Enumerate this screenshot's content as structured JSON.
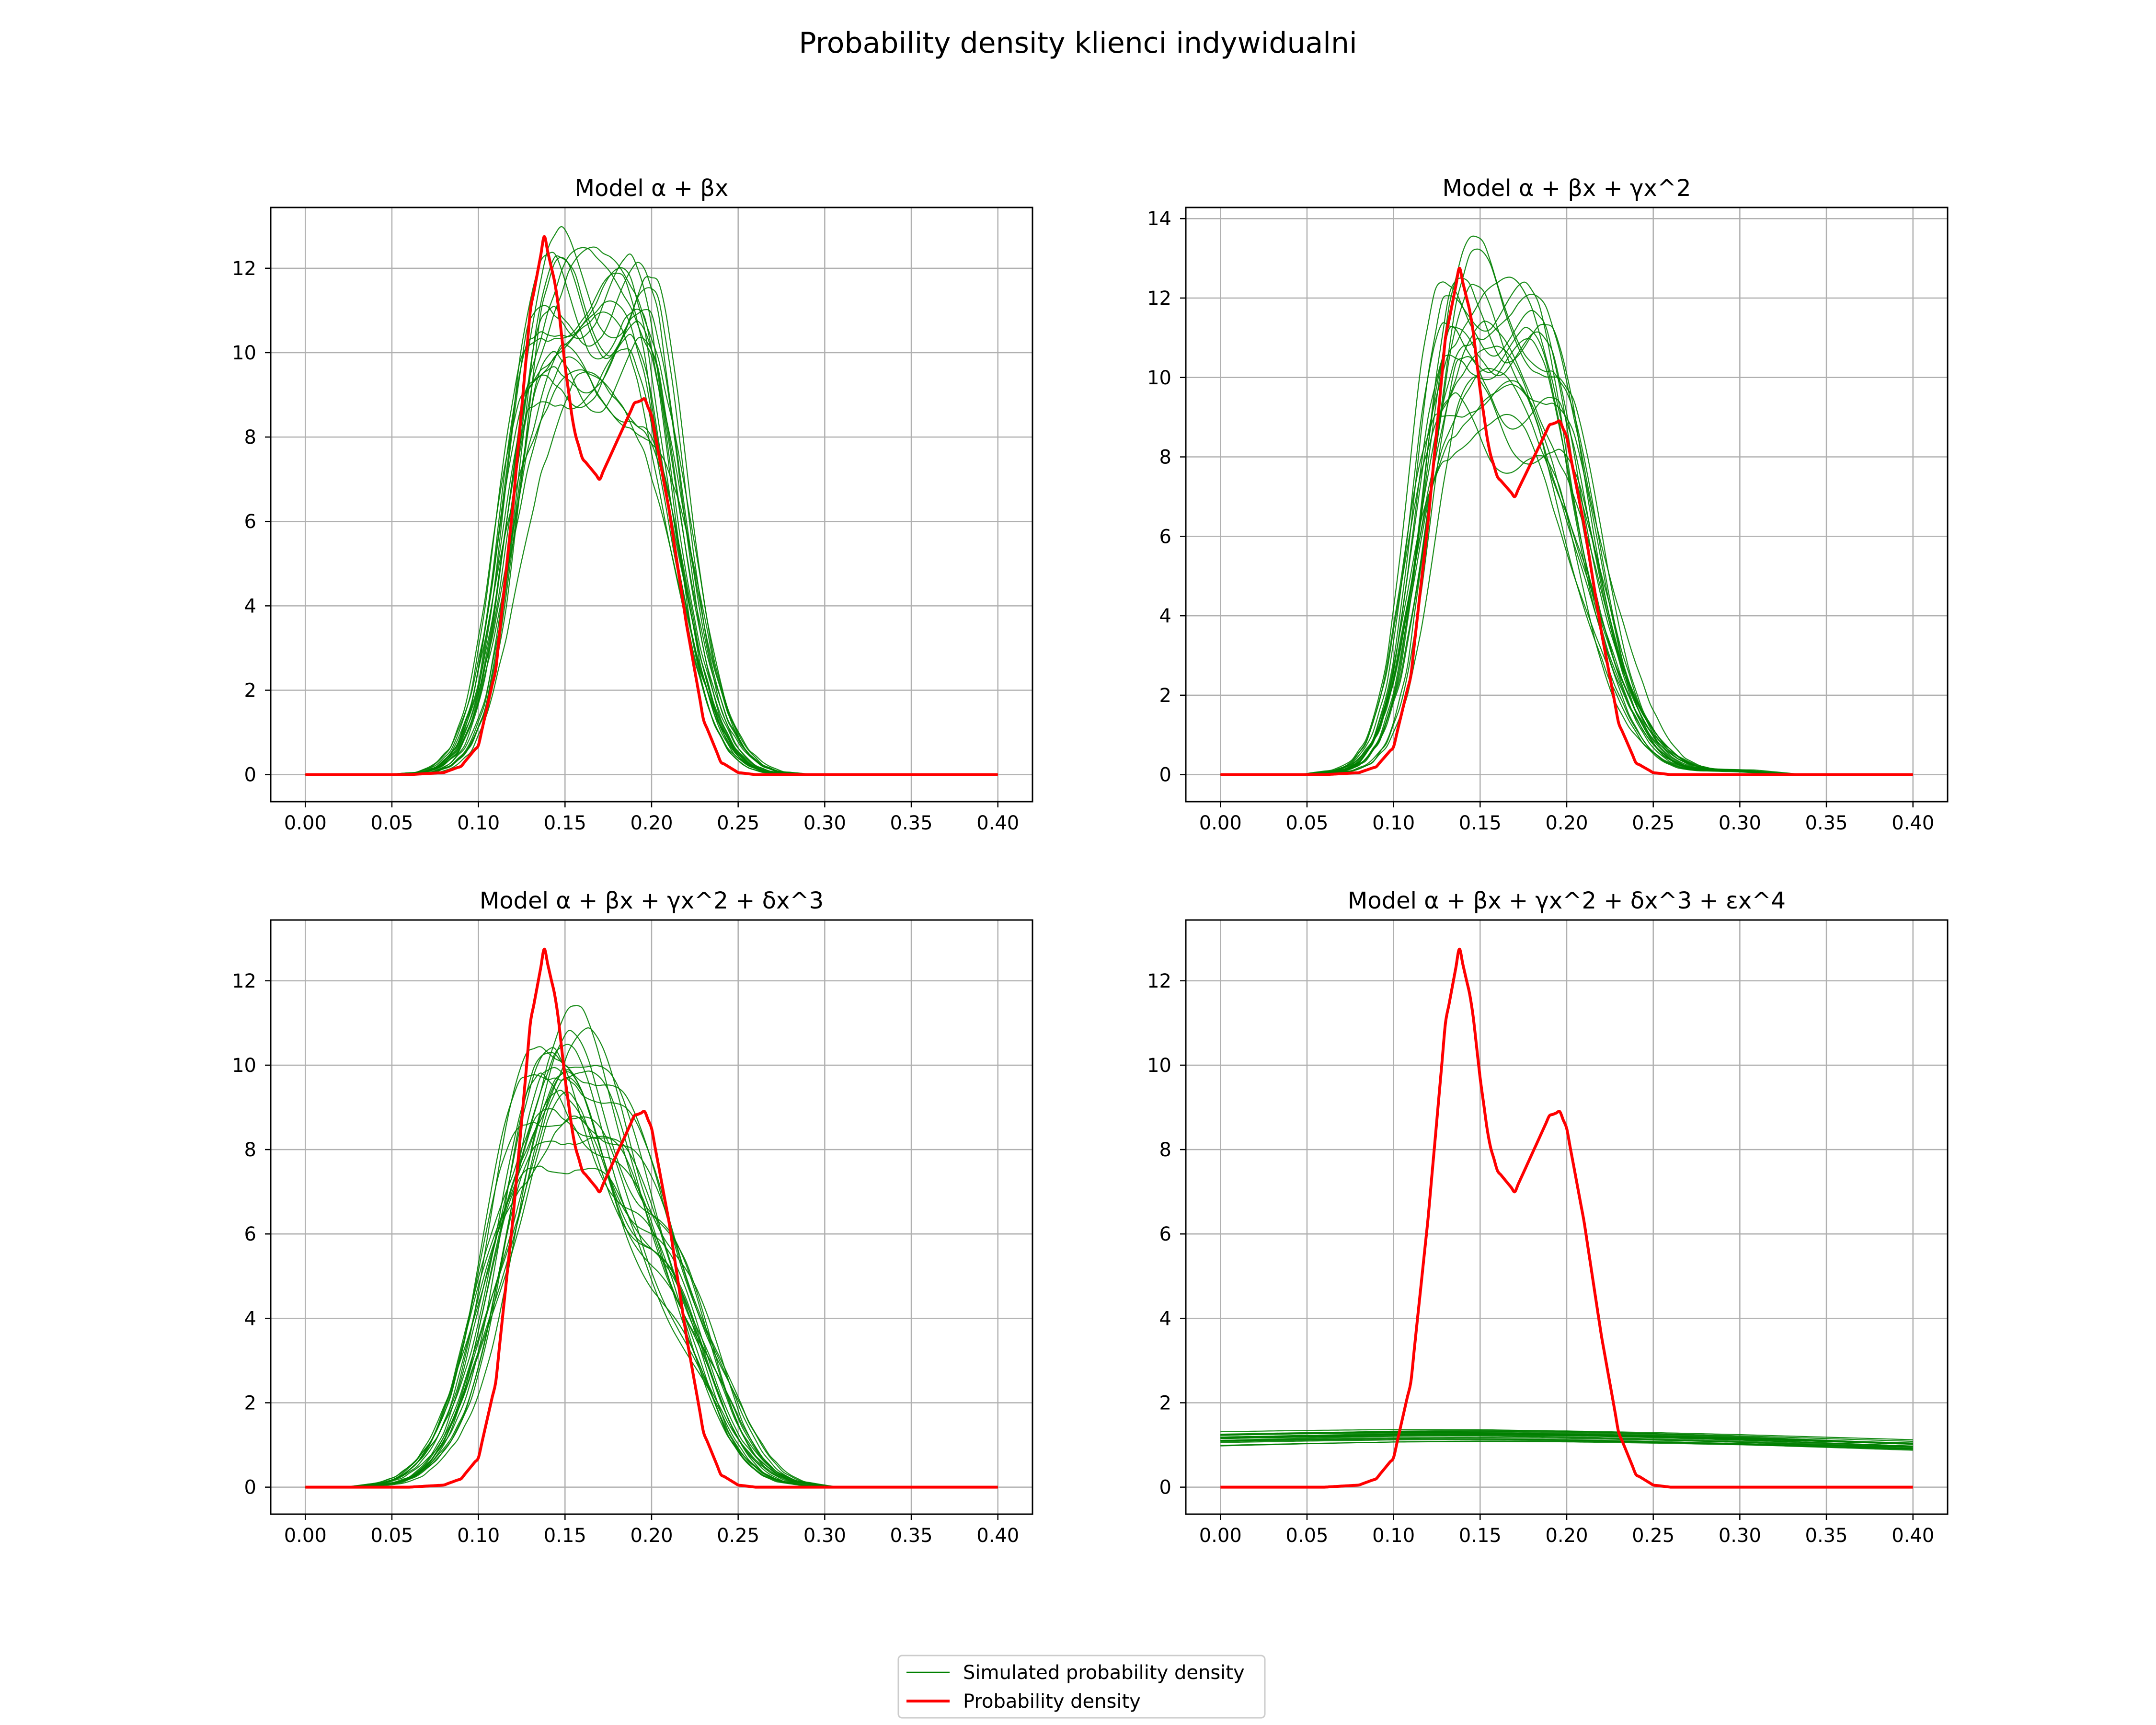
{
  "figure": {
    "title": "Probability density klienci indywidualni"
  },
  "legend": {
    "simulated_label": "Simulated probability density",
    "density_label": "Probability density",
    "colors": {
      "simulated": "#008000",
      "density": "#ff0000"
    }
  },
  "chart_data": [
    {
      "type": "line",
      "title": "Model α + βx",
      "xlabel": "",
      "ylabel": "",
      "xlim": [
        -0.02,
        0.42
      ],
      "ylim": [
        -0.64,
        13.44
      ],
      "xticks": [
        "0.00",
        "0.05",
        "0.10",
        "0.15",
        "0.20",
        "0.25",
        "0.30",
        "0.35",
        "0.40"
      ],
      "yticks": [
        "0",
        "2",
        "4",
        "6",
        "8",
        "10",
        "12"
      ],
      "grid": true,
      "series": [
        {
          "name": "Probability density",
          "color": "#ff0000",
          "x": [
            0.0,
            0.06,
            0.08,
            0.09,
            0.1,
            0.11,
            0.12,
            0.13,
            0.138,
            0.145,
            0.15,
            0.155,
            0.16,
            0.17,
            0.18,
            0.19,
            0.196,
            0.2,
            0.21,
            0.22,
            0.23,
            0.24,
            0.25,
            0.26,
            0.28,
            0.4
          ],
          "y": [
            0,
            0,
            0.05,
            0.2,
            0.7,
            2.5,
            6.4,
            11.0,
            12.75,
            11.5,
            9.7,
            8.2,
            7.5,
            7.0,
            7.9,
            8.8,
            8.9,
            8.5,
            6.3,
            3.6,
            1.3,
            0.3,
            0.05,
            0,
            0,
            0
          ]
        },
        {
          "name": "Simulated probability density",
          "color": "#008000",
          "kind": "bundle",
          "count": 20,
          "x": [
            0.0,
            0.05,
            0.07,
            0.08,
            0.09,
            0.1,
            0.11,
            0.12,
            0.13,
            0.14,
            0.15,
            0.16,
            0.17,
            0.18,
            0.19,
            0.2,
            0.21,
            0.22,
            0.23,
            0.24,
            0.25,
            0.26,
            0.27,
            0.29,
            0.4
          ],
          "y": [
            0,
            0,
            0.05,
            0.2,
            0.6,
            1.6,
            3.6,
            6.4,
            8.9,
            10.0,
            10.3,
            9.9,
            9.6,
            9.8,
            10.0,
            9.4,
            7.4,
            4.9,
            2.7,
            1.3,
            0.55,
            0.2,
            0.06,
            0,
            0
          ]
        }
      ]
    },
    {
      "type": "line",
      "title": "Model α + βx + γx^2",
      "xlabel": "",
      "ylabel": "",
      "xlim": [
        -0.02,
        0.42
      ],
      "ylim": [
        -0.68,
        14.28
      ],
      "xticks": [
        "0.00",
        "0.05",
        "0.10",
        "0.15",
        "0.20",
        "0.25",
        "0.30",
        "0.35",
        "0.40"
      ],
      "yticks": [
        "0",
        "2",
        "4",
        "6",
        "8",
        "10",
        "12",
        "14"
      ],
      "grid": true,
      "series": [
        {
          "name": "Probability density",
          "color": "#ff0000",
          "x": [
            0.0,
            0.06,
            0.08,
            0.09,
            0.1,
            0.11,
            0.12,
            0.13,
            0.138,
            0.145,
            0.15,
            0.155,
            0.16,
            0.17,
            0.18,
            0.19,
            0.196,
            0.2,
            0.21,
            0.22,
            0.23,
            0.24,
            0.25,
            0.26,
            0.28,
            0.4
          ],
          "y": [
            0,
            0,
            0.05,
            0.2,
            0.7,
            2.5,
            6.4,
            11.0,
            12.75,
            11.5,
            9.7,
            8.2,
            7.5,
            7.0,
            7.9,
            8.8,
            8.9,
            8.5,
            6.3,
            3.6,
            1.3,
            0.3,
            0.05,
            0,
            0,
            0
          ]
        },
        {
          "name": "Simulated probability density",
          "color": "#008000",
          "kind": "bundle",
          "count": 20,
          "x": [
            0.0,
            0.05,
            0.07,
            0.08,
            0.09,
            0.1,
            0.11,
            0.12,
            0.13,
            0.14,
            0.15,
            0.16,
            0.17,
            0.18,
            0.19,
            0.2,
            0.21,
            0.22,
            0.23,
            0.24,
            0.25,
            0.26,
            0.27,
            0.28,
            0.3,
            0.33,
            0.4
          ],
          "y": [
            0,
            0,
            0.1,
            0.3,
            0.9,
            2.3,
            4.9,
            8.0,
            10.2,
            10.9,
            10.8,
            10.3,
            10.1,
            9.9,
            9.3,
            8.0,
            6.1,
            4.2,
            2.6,
            1.5,
            0.8,
            0.4,
            0.2,
            0.12,
            0.1,
            0,
            0
          ]
        }
      ]
    },
    {
      "type": "line",
      "title": "Model α + βx + γx^2 + δx^3",
      "xlabel": "",
      "ylabel": "",
      "xlim": [
        -0.02,
        0.42
      ],
      "ylim": [
        -0.64,
        13.44
      ],
      "xticks": [
        "0.00",
        "0.05",
        "0.10",
        "0.15",
        "0.20",
        "0.25",
        "0.30",
        "0.35",
        "0.40"
      ],
      "yticks": [
        "0",
        "2",
        "4",
        "6",
        "8",
        "10",
        "12"
      ],
      "grid": true,
      "series": [
        {
          "name": "Probability density",
          "color": "#ff0000",
          "x": [
            0.0,
            0.06,
            0.08,
            0.09,
            0.1,
            0.11,
            0.12,
            0.13,
            0.138,
            0.145,
            0.15,
            0.155,
            0.16,
            0.17,
            0.18,
            0.19,
            0.196,
            0.2,
            0.21,
            0.22,
            0.23,
            0.24,
            0.25,
            0.26,
            0.28,
            0.4
          ],
          "y": [
            0,
            0,
            0.05,
            0.2,
            0.7,
            2.5,
            6.4,
            11.0,
            12.75,
            11.5,
            9.7,
            8.2,
            7.5,
            7.0,
            7.9,
            8.8,
            8.9,
            8.5,
            6.3,
            3.6,
            1.3,
            0.3,
            0.05,
            0,
            0,
            0
          ]
        },
        {
          "name": "Simulated probability density",
          "color": "#008000",
          "kind": "bundle",
          "count": 20,
          "x": [
            0.0,
            0.03,
            0.05,
            0.06,
            0.07,
            0.08,
            0.09,
            0.1,
            0.11,
            0.12,
            0.13,
            0.14,
            0.15,
            0.16,
            0.17,
            0.18,
            0.19,
            0.2,
            0.21,
            0.22,
            0.23,
            0.24,
            0.25,
            0.26,
            0.27,
            0.28,
            0.3,
            0.4
          ],
          "y": [
            0,
            0,
            0.1,
            0.25,
            0.6,
            1.2,
            2.2,
            3.7,
            5.5,
            7.3,
            8.8,
            9.7,
            10.0,
            9.7,
            9.0,
            8.2,
            7.3,
            6.5,
            5.6,
            4.6,
            3.5,
            2.4,
            1.4,
            0.75,
            0.35,
            0.15,
            0,
            0
          ]
        }
      ]
    },
    {
      "type": "line",
      "title": "Model α + βx + γx^2 + δx^3 + εx^4",
      "xlabel": "",
      "ylabel": "",
      "xlim": [
        -0.02,
        0.42
      ],
      "ylim": [
        -0.64,
        13.44
      ],
      "xticks": [
        "0.00",
        "0.05",
        "0.10",
        "0.15",
        "0.20",
        "0.25",
        "0.30",
        "0.35",
        "0.40"
      ],
      "yticks": [
        "0",
        "2",
        "4",
        "6",
        "8",
        "10",
        "12"
      ],
      "grid": true,
      "series": [
        {
          "name": "Probability density",
          "color": "#ff0000",
          "x": [
            0.0,
            0.06,
            0.08,
            0.09,
            0.1,
            0.11,
            0.12,
            0.13,
            0.138,
            0.145,
            0.15,
            0.155,
            0.16,
            0.17,
            0.18,
            0.19,
            0.196,
            0.2,
            0.21,
            0.22,
            0.23,
            0.24,
            0.25,
            0.26,
            0.28,
            0.4
          ],
          "y": [
            0,
            0,
            0.05,
            0.2,
            0.7,
            2.5,
            6.4,
            11.0,
            12.75,
            11.5,
            9.7,
            8.2,
            7.5,
            7.0,
            7.9,
            8.8,
            8.9,
            8.5,
            6.3,
            3.6,
            1.3,
            0.3,
            0.05,
            0,
            0,
            0
          ]
        },
        {
          "name": "Simulated probability density",
          "color": "#008000",
          "kind": "bundle",
          "count": 20,
          "x": [
            0.0,
            0.05,
            0.1,
            0.15,
            0.2,
            0.25,
            0.3,
            0.35,
            0.4
          ],
          "y": [
            1.1,
            1.14,
            1.17,
            1.18,
            1.16,
            1.12,
            1.07,
            1.01,
            0.95
          ]
        }
      ]
    }
  ]
}
